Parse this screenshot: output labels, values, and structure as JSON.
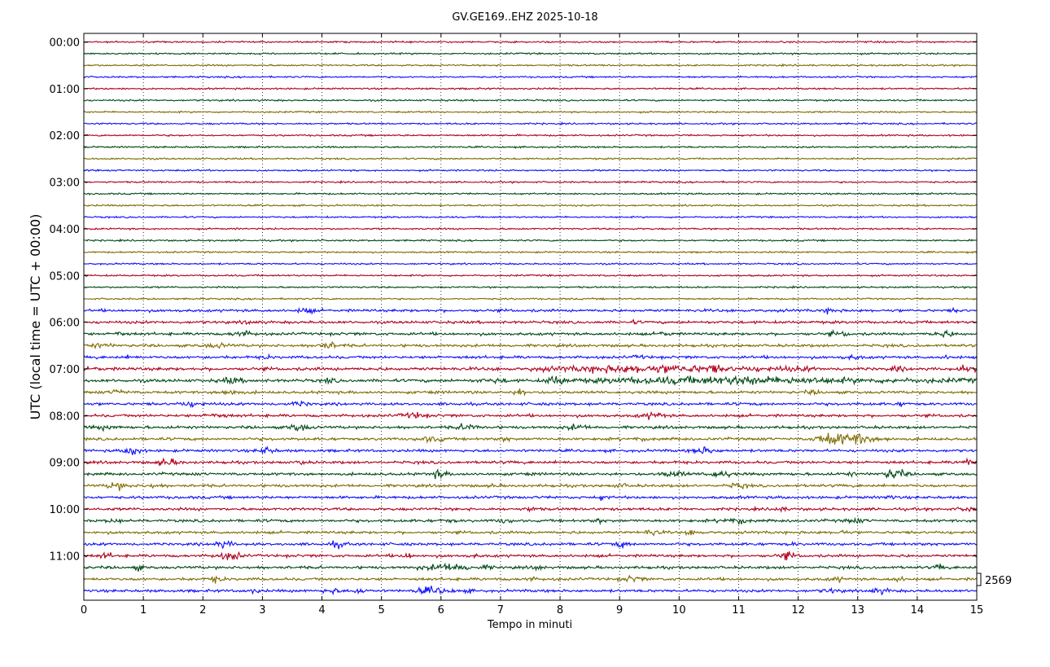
{
  "chart_data": {
    "type": "line",
    "title": "GV.GE169..EHZ 2025-10-18",
    "xlabel": "Tempo in minuti",
    "ylabel": "UTC (local time = UTC + 00:00)",
    "xlim": [
      0,
      15
    ],
    "x_ticks": [
      "0",
      "1",
      "2",
      "3",
      "4",
      "5",
      "6",
      "7",
      "8",
      "9",
      "10",
      "11",
      "12",
      "13",
      "14",
      "15"
    ],
    "y_ticks": [
      "00:00",
      "01:00",
      "02:00",
      "03:00",
      "04:00",
      "05:00",
      "06:00",
      "07:00",
      "08:00",
      "09:00",
      "10:00",
      "11:00"
    ],
    "grid": "vertical dotted lines at each minute",
    "scale_label": "2569",
    "trace_colors": [
      "#b0001e",
      "#004a16",
      "#7f6b00",
      "#1010ff"
    ],
    "traces_per_hour": 4,
    "minutes_per_trace": 15,
    "series": [
      {
        "start": "00:00",
        "amplitude": "low"
      },
      {
        "start": "00:15",
        "amplitude": "low"
      },
      {
        "start": "00:30",
        "amplitude": "low"
      },
      {
        "start": "00:45",
        "amplitude": "low"
      },
      {
        "start": "01:00",
        "amplitude": "low"
      },
      {
        "start": "01:15",
        "amplitude": "low"
      },
      {
        "start": "01:30",
        "amplitude": "low"
      },
      {
        "start": "01:45",
        "amplitude": "low"
      },
      {
        "start": "02:00",
        "amplitude": "low"
      },
      {
        "start": "02:15",
        "amplitude": "low"
      },
      {
        "start": "02:30",
        "amplitude": "low"
      },
      {
        "start": "02:45",
        "amplitude": "low"
      },
      {
        "start": "03:00",
        "amplitude": "low"
      },
      {
        "start": "03:15",
        "amplitude": "low"
      },
      {
        "start": "03:30",
        "amplitude": "low"
      },
      {
        "start": "03:45",
        "amplitude": "low"
      },
      {
        "start": "04:00",
        "amplitude": "low"
      },
      {
        "start": "04:15",
        "amplitude": "low"
      },
      {
        "start": "04:30",
        "amplitude": "low"
      },
      {
        "start": "04:45",
        "amplitude": "low"
      },
      {
        "start": "05:00",
        "amplitude": "low"
      },
      {
        "start": "05:15",
        "amplitude": "low"
      },
      {
        "start": "05:30",
        "amplitude": "low"
      },
      {
        "start": "05:45",
        "amplitude": "medium"
      },
      {
        "start": "06:00",
        "amplitude": "medium"
      },
      {
        "start": "06:15",
        "amplitude": "medium"
      },
      {
        "start": "06:30",
        "amplitude": "medium"
      },
      {
        "start": "06:45",
        "amplitude": "medium"
      },
      {
        "start": "07:00",
        "amplitude": "high",
        "event": [
          7.5,
          12.3
        ]
      },
      {
        "start": "07:15",
        "amplitude": "high",
        "event": [
          7.8,
          15.0
        ]
      },
      {
        "start": "07:30",
        "amplitude": "medium"
      },
      {
        "start": "07:45",
        "amplitude": "medium"
      },
      {
        "start": "08:00",
        "amplitude": "medium"
      },
      {
        "start": "08:15",
        "amplitude": "medium",
        "event": [
          3.4,
          3.9
        ]
      },
      {
        "start": "08:30",
        "amplitude": "medium",
        "event": [
          12.2,
          13.6
        ]
      },
      {
        "start": "08:45",
        "amplitude": "medium"
      },
      {
        "start": "09:00",
        "amplitude": "medium",
        "event": [
          1.2,
          1.7
        ]
      },
      {
        "start": "09:15",
        "amplitude": "medium"
      },
      {
        "start": "09:30",
        "amplitude": "medium",
        "event": [
          0.4,
          0.8
        ]
      },
      {
        "start": "09:45",
        "amplitude": "medium"
      },
      {
        "start": "10:00",
        "amplitude": "medium"
      },
      {
        "start": "10:15",
        "amplitude": "medium"
      },
      {
        "start": "10:30",
        "amplitude": "medium"
      },
      {
        "start": "10:45",
        "amplitude": "medium"
      },
      {
        "start": "11:00",
        "amplitude": "medium"
      },
      {
        "start": "11:15",
        "amplitude": "medium",
        "event": [
          5.6,
          6.9
        ]
      },
      {
        "start": "11:30",
        "amplitude": "medium"
      },
      {
        "start": "11:45",
        "amplitude": "medium",
        "event": [
          5.5,
          6.3
        ]
      }
    ]
  }
}
